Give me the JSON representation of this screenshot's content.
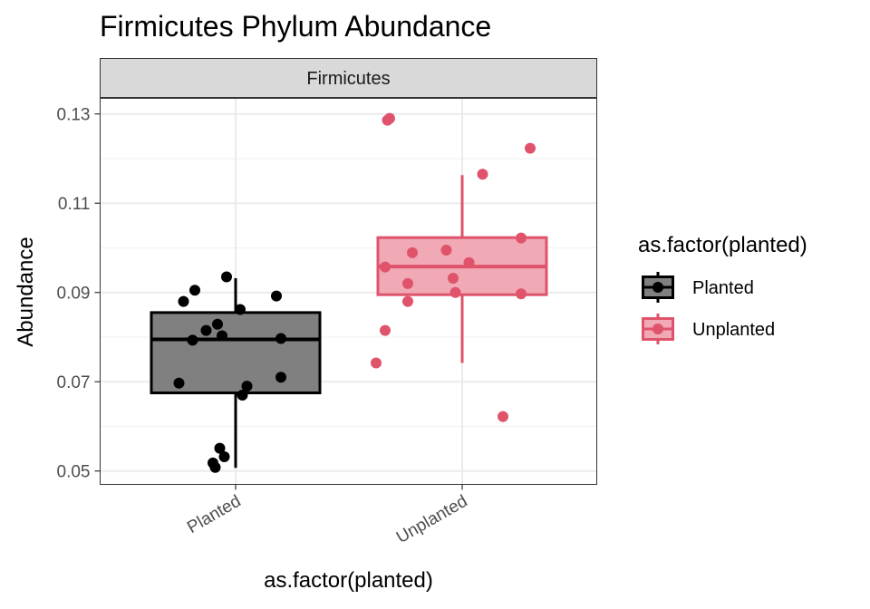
{
  "chart_data": {
    "type": "box",
    "title": "Firmicutes Phylum Abundance",
    "facet": "Firmicutes",
    "xlabel": "as.factor(planted)",
    "ylabel": "Abundance",
    "ylim": [
      0.047,
      0.1335
    ],
    "yticks": [
      "0.05",
      "0.07",
      "0.09",
      "0.11",
      "0.13"
    ],
    "categories": [
      "Planted",
      "Unplanted"
    ],
    "grid": true,
    "legend": {
      "title": "as.factor(planted)",
      "position": "right",
      "entries": [
        "Planted",
        "Unplanted"
      ]
    },
    "series": [
      {
        "name": "Planted",
        "color": "#000000",
        "fill": "#808080",
        "box": {
          "whisker_low": 0.0507,
          "q1": 0.0675,
          "median": 0.0795,
          "q3": 0.0855,
          "whisker_high": 0.0932
        },
        "points": [
          {
            "jitter": -0.23,
            "y": 0.088
          },
          {
            "jitter": -0.18,
            "y": 0.0905
          },
          {
            "jitter": -0.25,
            "y": 0.0697
          },
          {
            "jitter": -0.19,
            "y": 0.0793
          },
          {
            "jitter": -0.13,
            "y": 0.0815
          },
          {
            "jitter": -0.08,
            "y": 0.0829
          },
          {
            "jitter": -0.04,
            "y": 0.0935
          },
          {
            "jitter": -0.06,
            "y": 0.0803
          },
          {
            "jitter": 0.02,
            "y": 0.0862
          },
          {
            "jitter": 0.03,
            "y": 0.067
          },
          {
            "jitter": 0.05,
            "y": 0.069
          },
          {
            "jitter": 0.18,
            "y": 0.0892
          },
          {
            "jitter": 0.2,
            "y": 0.0797
          },
          {
            "jitter": 0.2,
            "y": 0.071
          },
          {
            "jitter": -0.07,
            "y": 0.0551
          },
          {
            "jitter": -0.05,
            "y": 0.0532
          },
          {
            "jitter": -0.1,
            "y": 0.0518
          },
          {
            "jitter": -0.09,
            "y": 0.0508
          }
        ]
      },
      {
        "name": "Unplanted",
        "color": "#DF536B",
        "fill": "#F0A9B5",
        "box": {
          "whisker_low": 0.0742,
          "q1": 0.0895,
          "median": 0.0958,
          "q3": 0.1023,
          "whisker_high": 0.1163
        },
        "points": [
          {
            "jitter": -0.34,
            "y": 0.0957
          },
          {
            "jitter": -0.38,
            "y": 0.0742
          },
          {
            "jitter": -0.34,
            "y": 0.0815
          },
          {
            "jitter": -0.24,
            "y": 0.092
          },
          {
            "jitter": -0.24,
            "y": 0.088
          },
          {
            "jitter": -0.22,
            "y": 0.0989
          },
          {
            "jitter": -0.07,
            "y": 0.0995
          },
          {
            "jitter": -0.04,
            "y": 0.0932
          },
          {
            "jitter": -0.03,
            "y": 0.09
          },
          {
            "jitter": 0.03,
            "y": 0.0967
          },
          {
            "jitter": 0.09,
            "y": 0.1165
          },
          {
            "jitter": 0.18,
            "y": 0.0622
          },
          {
            "jitter": 0.26,
            "y": 0.1022
          },
          {
            "jitter": 0.26,
            "y": 0.0897
          },
          {
            "jitter": 0.3,
            "y": 0.1223
          },
          {
            "jitter": -0.33,
            "y": 0.1286
          },
          {
            "jitter": -0.32,
            "y": 0.129
          }
        ]
      }
    ]
  }
}
